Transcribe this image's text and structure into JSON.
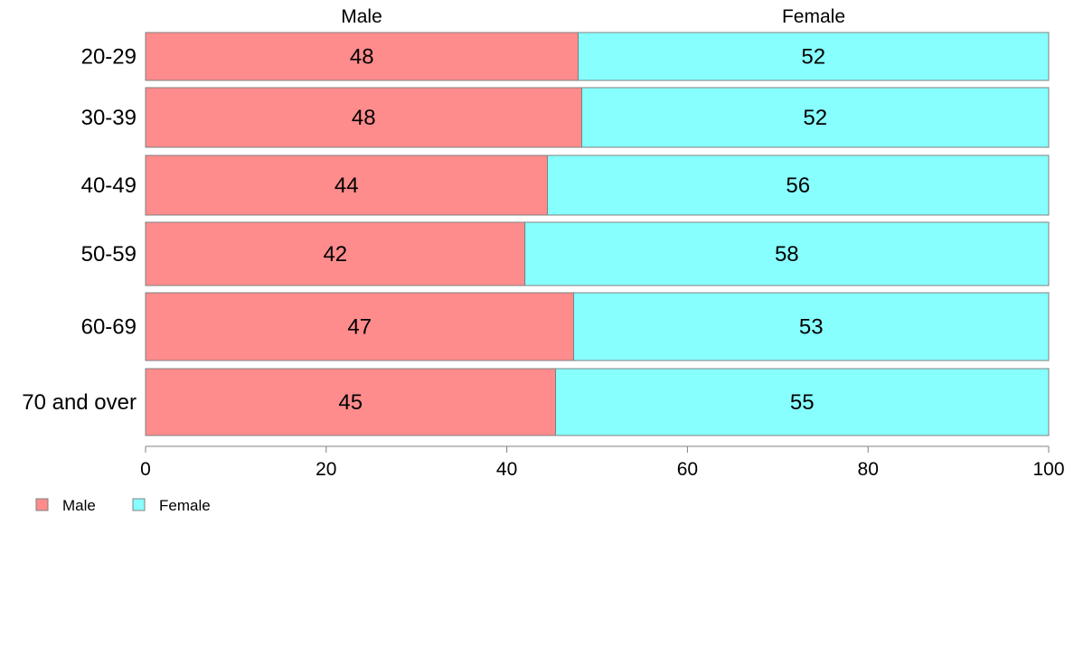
{
  "chart_data": {
    "type": "bar",
    "orientation": "horizontal",
    "stacked": true,
    "categories": [
      "20-29",
      "30-39",
      "40-49",
      "50-59",
      "60-69",
      "70 and over"
    ],
    "series": [
      {
        "name": "Male",
        "color": "#ff8c8c",
        "values": [
          48,
          48,
          44,
          42,
          47,
          45
        ],
        "bar_values": [
          47.9,
          48.3,
          44.5,
          42.0,
          47.4,
          45.4
        ]
      },
      {
        "name": "Female",
        "color": "#88ffff",
        "values": [
          52,
          52,
          56,
          58,
          53,
          55
        ]
      }
    ],
    "top_labels": [
      "Male",
      "Female"
    ],
    "title": "",
    "xlabel": "",
    "ylabel": "",
    "xlim": [
      0,
      100
    ],
    "xticks": [
      0,
      20,
      40,
      60,
      80,
      100
    ],
    "grid": false,
    "legend": {
      "position": "bottom-left",
      "entries": [
        "Male",
        "Female"
      ]
    }
  }
}
